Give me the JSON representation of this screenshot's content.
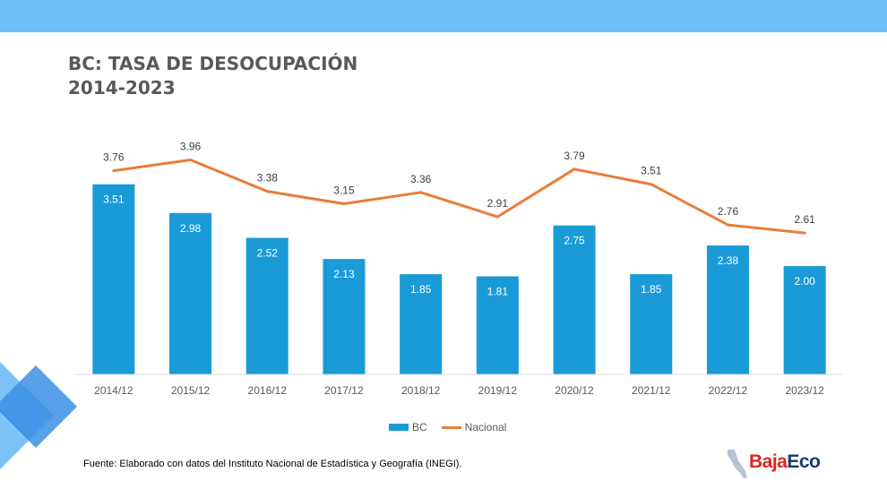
{
  "title_line1": "BC: TASA DE DESOCUPACIÓN",
  "title_line2": "2014-2023",
  "colors": {
    "top_band": "#6DBFFA",
    "bar": "#1A9BD7",
    "line": "#E97D3A",
    "title": "#595959",
    "axis_text": "#595959",
    "deco_light": "#7CC4F7",
    "deco_dark": "#3B8FE3"
  },
  "legend": {
    "bc_label": "BC",
    "nacional_label": "Nacional"
  },
  "source": "Fuente: Elaborado con datos del Instituto Nacional de Estadística y Geografía (INEGI).",
  "logo": {
    "part1": "Baja",
    "part2": "Eco",
    "part1_color": "#D9261C",
    "part2_color": "#1B3A6B"
  },
  "chart_data": {
    "type": "bar",
    "categories": [
      "2014/12",
      "2015/12",
      "2016/12",
      "2017/12",
      "2018/12",
      "2019/12",
      "2020/12",
      "2021/12",
      "2022/12",
      "2023/12"
    ],
    "series": [
      {
        "name": "BC",
        "type": "bar",
        "values": [
          3.51,
          2.98,
          2.52,
          2.13,
          1.85,
          1.81,
          2.75,
          1.85,
          2.38,
          2.0
        ],
        "labels": [
          "3.51",
          "2.98",
          "2.52",
          "2.13",
          "1.85",
          "1.81",
          "2.75",
          "1.85",
          "2.38",
          "2.00"
        ]
      },
      {
        "name": "Nacional",
        "type": "line",
        "values": [
          3.76,
          3.96,
          3.38,
          3.15,
          3.36,
          2.91,
          3.79,
          3.51,
          2.76,
          2.61
        ],
        "labels": [
          "3.76",
          "3.96",
          "3.38",
          "3.15",
          "3.36",
          "2.91",
          "3.79",
          "3.51",
          "2.76",
          "2.61"
        ]
      }
    ],
    "ylim": [
      0,
      4.2
    ],
    "grid": false,
    "legend_position": "bottom"
  }
}
